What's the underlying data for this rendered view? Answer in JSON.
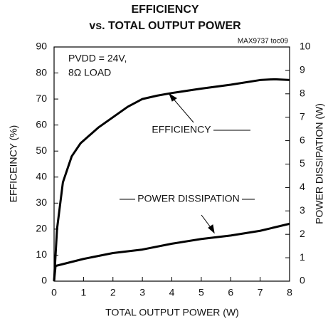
{
  "chart_data": {
    "type": "line",
    "title": [
      "EFFICIENCY",
      "vs. TOTAL OUTPUT POWER"
    ],
    "annotations": [
      "MAX9737 toc09",
      "PVDD = 24V,",
      "8Ω LOAD"
    ],
    "xlabel": "TOTAL OUTPUT POWER (W)",
    "ylabel": "EFFICEINCY (%)",
    "y2label": "POWER DISSIPATION (W)",
    "xlim": [
      0,
      8
    ],
    "xticks": [
      0,
      1,
      2,
      3,
      4,
      5,
      6,
      7,
      8
    ],
    "ylim": [
      0,
      90
    ],
    "yticks": [
      0,
      10,
      20,
      30,
      40,
      50,
      60,
      70,
      80,
      90
    ],
    "y2lim": [
      0,
      10
    ],
    "y2ticks": [
      0,
      1,
      2,
      3,
      4,
      5,
      6,
      7,
      8,
      9,
      10
    ],
    "grid": false,
    "series": [
      {
        "name": "EFFICIENCY",
        "color": "#000000",
        "x": [
          0,
          0.1,
          0.3,
          0.6,
          0.9,
          1.2,
          1.5,
          2,
          2.5,
          3,
          3.5,
          4,
          5,
          6,
          7,
          7.5,
          8
        ],
        "values": [
          0,
          20,
          38,
          48,
          53,
          56,
          59,
          63,
          67,
          70,
          71.3,
          72.3,
          74,
          75.5,
          77.3,
          77.6,
          77.3
        ]
      },
      {
        "name": "POWER DISSIPATION",
        "color": "#000000",
        "axis": "y2",
        "x": [
          0,
          0.05,
          1,
          2,
          3,
          4,
          5,
          6,
          7,
          8
        ],
        "values": [
          0,
          0.65,
          0.95,
          1.2,
          1.35,
          1.6,
          1.8,
          1.95,
          2.15,
          2.45
        ]
      }
    ]
  }
}
